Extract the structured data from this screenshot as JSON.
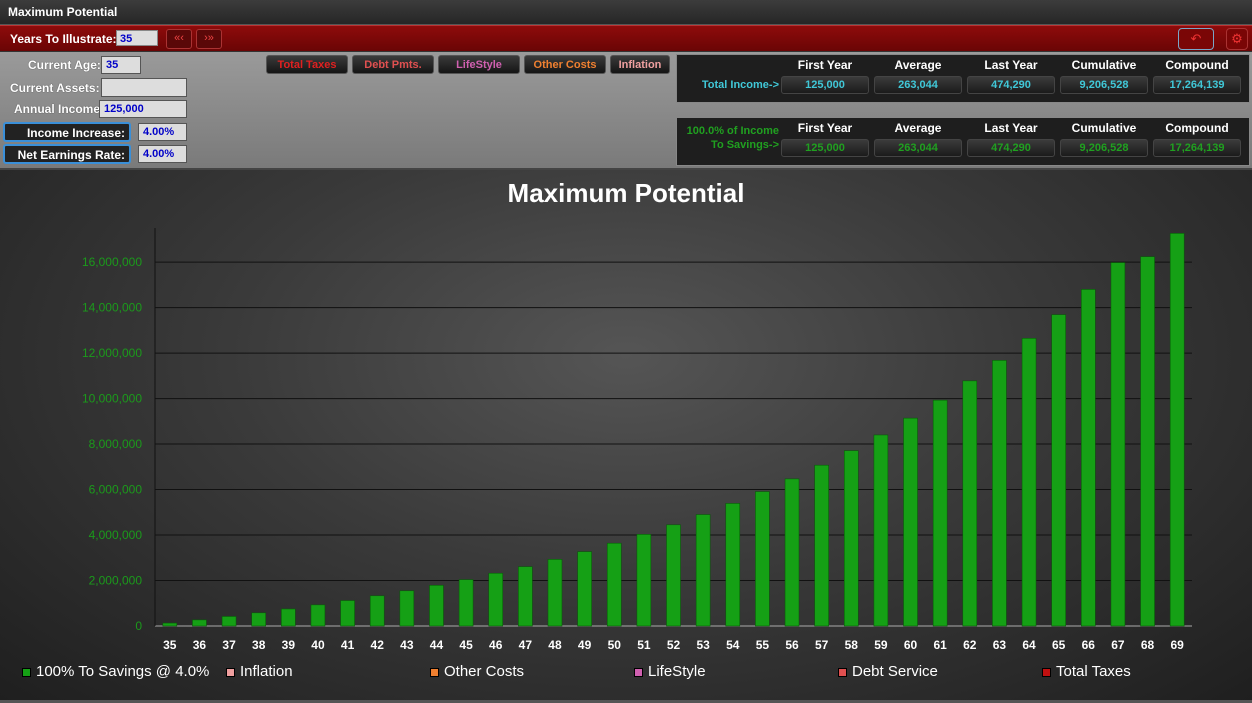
{
  "window": {
    "title": "Maximum Potential"
  },
  "toolbar": {
    "years_label": "Years To Illustrate:",
    "years_value": "35",
    "prev_icon": "double-chevron-left-icon",
    "next_icon": "double-chevron-right-icon",
    "undo_icon": "undo-arrow-icon",
    "settings_icon": "gear-icon"
  },
  "inputs": {
    "current_age_label": "Current Age:",
    "current_age": "35",
    "current_assets_label": "Current Assets:",
    "current_assets": "",
    "annual_income_label": "Annual Income:",
    "annual_income": "125,000",
    "income_increase_label": "Income Increase:",
    "income_increase": "4.00%",
    "net_earnings_label": "Net Earnings Rate:",
    "net_earnings": "4.00%"
  },
  "toggles": [
    {
      "label": "Total Taxes",
      "color": "#e02020"
    },
    {
      "label": "Debt Pmts.",
      "color": "#e05050"
    },
    {
      "label": "LifeStyle",
      "color": "#d060b0"
    },
    {
      "label": "Other Costs",
      "color": "#f08030"
    },
    {
      "label": "Inflation",
      "color": "#f0a0a0"
    }
  ],
  "summary": {
    "headers": [
      "First Year",
      "Average",
      "Last Year",
      "Cumulative",
      "Compound"
    ],
    "income": {
      "label": "Total Income->",
      "values": [
        "125,000",
        "263,044",
        "474,290",
        "9,206,528",
        "17,264,139"
      ],
      "color": "#40c8d8"
    },
    "savings": {
      "label_line1": "100.0% of Income",
      "label_line2": "To Savings->",
      "values": [
        "125,000",
        "263,044",
        "474,290",
        "9,206,528",
        "17,264,139"
      ],
      "color": "#20a020"
    }
  },
  "chart_data": {
    "type": "bar",
    "title": "Maximum Potential",
    "xlabel": "",
    "ylabel": "",
    "ylim": [
      0,
      17500000
    ],
    "yticks": [
      "0",
      "2,000,000",
      "4,000,000",
      "6,000,000",
      "8,000,000",
      "10,000,000",
      "12,000,000",
      "14,000,000",
      "16,000,000"
    ],
    "grid": true,
    "categories": [
      "35",
      "36",
      "37",
      "38",
      "39",
      "40",
      "41",
      "42",
      "43",
      "44",
      "45",
      "46",
      "47",
      "48",
      "49",
      "50",
      "51",
      "52",
      "53",
      "54",
      "55",
      "56",
      "57",
      "58",
      "59",
      "60",
      "61",
      "62",
      "63",
      "64",
      "65",
      "66",
      "67",
      "68",
      "69"
    ],
    "series": [
      {
        "name": "100% To Savings @ 4.0%",
        "color": "#15a015",
        "values": [
          130000,
          270000,
          420000,
          580000,
          750000,
          930000,
          1120000,
          1330000,
          1550000,
          1790000,
          2040000,
          2320000,
          2610000,
          2930000,
          3270000,
          3640000,
          4030000,
          4450000,
          4900000,
          5390000,
          5910000,
          6470000,
          7070000,
          7710000,
          8400000,
          9140000,
          9930000,
          10780000,
          11680000,
          12650000,
          13690000,
          14800000,
          15980000,
          16240000,
          17264139
        ]
      }
    ],
    "legend": [
      {
        "label": "100% To Savings @ 4.0%",
        "color": "#15a015"
      },
      {
        "label": "Inflation",
        "color": "#f0a0a0"
      },
      {
        "label": "Other Costs",
        "color": "#f08030"
      },
      {
        "label": "LifeStyle",
        "color": "#d060b0"
      },
      {
        "label": "Debt Service",
        "color": "#e05050"
      },
      {
        "label": "Total Taxes",
        "color": "#c01010"
      }
    ],
    "legend_position": "bottom"
  }
}
